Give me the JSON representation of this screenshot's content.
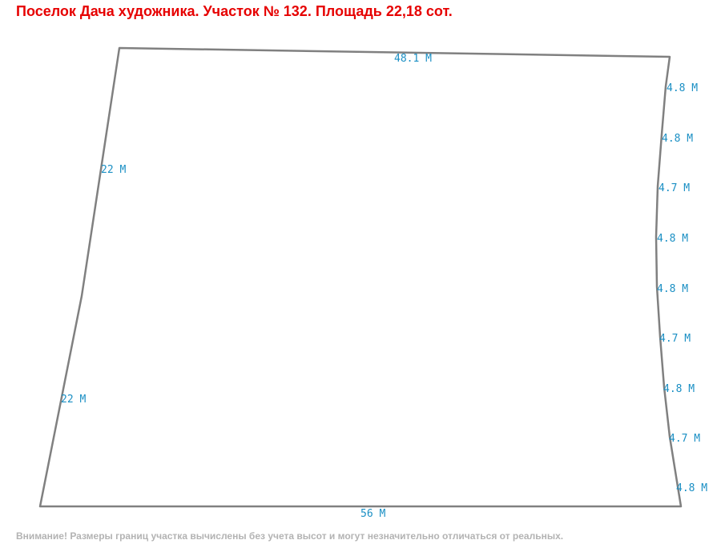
{
  "title": "Поселок Дача художника. Участок № 132. Площадь 22,18 сот.",
  "colors": {
    "title": "#e60000",
    "outline": "#808080",
    "dimension_text": "#1a8fc4",
    "note": "#b3b3b3"
  },
  "dimensions": {
    "top": "48.1 М",
    "left_upper": "22 М",
    "left_lower": "22 М",
    "bottom": "56 М",
    "right": [
      "4.8 М",
      "4.8 М",
      "4.7 М",
      "4.8 М",
      "4.8 М",
      "4.7 М",
      "4.8 М",
      "4.7 М",
      "4.8 М"
    ]
  },
  "note": "Внимание! Размеры границ участка вычислены без учета высот и могут незначительно отличаться от реальных."
}
